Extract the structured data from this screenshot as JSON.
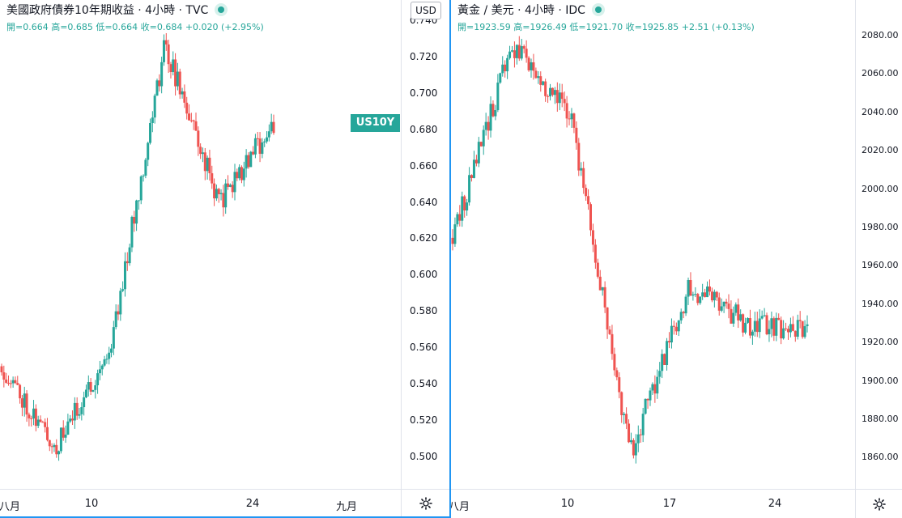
{
  "colors": {
    "up": "#26a69a",
    "down": "#ef5350",
    "accent": "#2196f3"
  },
  "left": {
    "title": "美國政府債券10年期收益 · 4小時 · TVC",
    "ohlc": "開=0.664 高=0.685 低=0.664 收=0.684 +0.020 (+2.95%)",
    "currency": "USD",
    "price_flag": "US10Y",
    "price_ticks": [
      "0.740",
      "0.720",
      "0.700",
      "0.680",
      "0.660",
      "0.640",
      "0.620",
      "0.600",
      "0.580",
      "0.560",
      "0.540",
      "0.520",
      "0.500"
    ],
    "time_ticks": [
      "八月",
      "10",
      "24",
      "九月"
    ],
    "settings_icon": "gear-icon"
  },
  "right": {
    "title": "黃金 / 美元 · 4小時 · IDC",
    "ohlc": "開=1923.59 高=1926.49 低=1921.70 收=1925.85 +2.51 (+0.13%)",
    "currency": "USD",
    "price_ticks": [
      "2080.00",
      "2060.00",
      "2040.00",
      "2020.00",
      "2000.00",
      "1980.00",
      "1960.00",
      "1940.00",
      "1920.00",
      "1900.00",
      "1880.00",
      "1860.00"
    ],
    "time_ticks": [
      "八月",
      "10",
      "17",
      "24"
    ],
    "settings_icon": "gear-icon"
  },
  "chart_data": [
    {
      "type": "candlestick",
      "title": "美國政府債券10年期收益 · 4小時 · TVC",
      "unit": "USD",
      "interval": "4小時",
      "ylim": [
        0.49,
        0.745
      ],
      "x_tick_labels": [
        "八月",
        "10",
        "24",
        "九月"
      ],
      "legend_position": "top-left",
      "grid": false,
      "key_points": [
        {
          "label": "八月",
          "value": 0.55
        },
        {
          "label": "low",
          "value": 0.505
        },
        {
          "label": "10",
          "value": 0.56
        },
        {
          "label": "high",
          "value": 0.727
        },
        {
          "label": "24",
          "value": 0.64
        },
        {
          "label": "last",
          "value": 0.684
        }
      ],
      "last_close": 0.684
    },
    {
      "type": "candlestick",
      "title": "黃金 / 美元 · 4小時 · IDC",
      "unit": "USD",
      "interval": "4小時",
      "ylim": [
        1845,
        2095
      ],
      "x_tick_labels": [
        "八月",
        "10",
        "17",
        "24"
      ],
      "legend_position": "top-left",
      "grid": false,
      "key_points": [
        {
          "label": "八月",
          "value": 1975
        },
        {
          "label": "high",
          "value": 2075
        },
        {
          "label": "10",
          "value": 2040
        },
        {
          "label": "low",
          "value": 1862
        },
        {
          "label": "17",
          "value": 1950
        },
        {
          "label": "24",
          "value": 1930
        },
        {
          "label": "last",
          "value": 1925.85
        }
      ],
      "last_close": 1925.85
    }
  ]
}
